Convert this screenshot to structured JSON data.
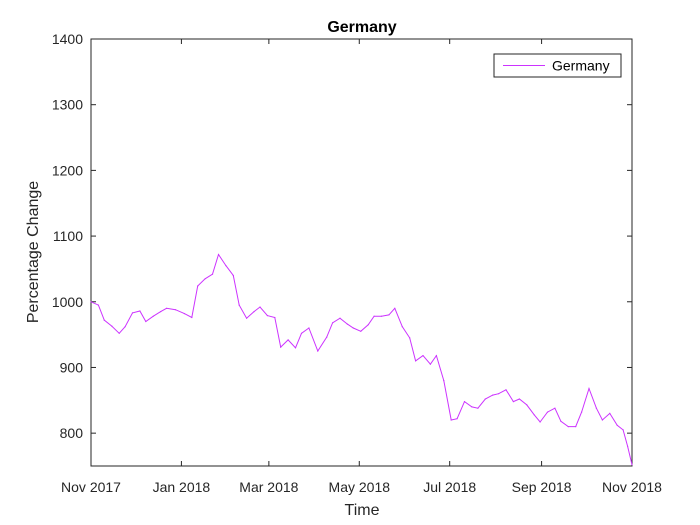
{
  "chart_data": {
    "type": "line",
    "title": "Germany",
    "xlabel": "Time",
    "ylabel": "Percentage Change",
    "xlim": [
      "2017-11-01",
      "2018-11-01"
    ],
    "ylim": [
      750,
      1400
    ],
    "x_ticks": [
      "2017-11-01",
      "2018-01-01",
      "2018-03-01",
      "2018-05-01",
      "2018-07-01",
      "2018-09-01",
      "2018-11-01"
    ],
    "x_tick_labels": [
      "Nov 2017",
      "Jan 2018",
      "Mar 2018",
      "May 2018",
      "Jul 2018",
      "Sep 2018",
      "Nov 2018"
    ],
    "y_ticks": [
      800,
      900,
      1000,
      1100,
      1200,
      1300,
      1400
    ],
    "y_tick_labels": [
      "800",
      "900",
      "1000",
      "1100",
      "1200",
      "1300",
      "1400"
    ],
    "grid": false,
    "legend": {
      "position": "top-right",
      "entries": [
        "Germany"
      ]
    },
    "series": [
      {
        "name": "Germany",
        "color": "#cc33ff",
        "x": [
          "2017-11-01",
          "2017-11-06",
          "2017-11-10",
          "2017-11-15",
          "2017-11-20",
          "2017-11-24",
          "2017-11-29",
          "2017-12-04",
          "2017-12-08",
          "2017-12-13",
          "2017-12-18",
          "2017-12-22",
          "2017-12-28",
          "2018-01-03",
          "2018-01-08",
          "2018-01-12",
          "2018-01-17",
          "2018-01-22",
          "2018-01-26",
          "2018-01-31",
          "2018-02-05",
          "2018-02-09",
          "2018-02-14",
          "2018-02-19",
          "2018-02-23",
          "2018-02-28",
          "2018-03-05",
          "2018-03-09",
          "2018-03-14",
          "2018-03-19",
          "2018-03-23",
          "2018-03-28",
          "2018-04-03",
          "2018-04-09",
          "2018-04-13",
          "2018-04-18",
          "2018-04-23",
          "2018-04-27",
          "2018-05-02",
          "2018-05-07",
          "2018-05-11",
          "2018-05-16",
          "2018-05-21",
          "2018-05-25",
          "2018-05-30",
          "2018-06-04",
          "2018-06-08",
          "2018-06-13",
          "2018-06-18",
          "2018-06-22",
          "2018-06-27",
          "2018-07-02",
          "2018-07-06",
          "2018-07-11",
          "2018-07-16",
          "2018-07-20",
          "2018-07-25",
          "2018-07-30",
          "2018-08-03",
          "2018-08-08",
          "2018-08-13",
          "2018-08-17",
          "2018-08-22",
          "2018-08-27",
          "2018-08-31",
          "2018-09-05",
          "2018-09-10",
          "2018-09-14",
          "2018-09-19",
          "2018-09-24",
          "2018-09-28",
          "2018-10-03",
          "2018-10-08",
          "2018-10-12",
          "2018-10-17",
          "2018-10-22",
          "2018-10-26",
          "2018-10-29",
          "2018-11-01"
        ],
        "values": [
          1000,
          995,
          972,
          963,
          952,
          962,
          983,
          986,
          970,
          978,
          985,
          990,
          988,
          982,
          976,
          1024,
          1035,
          1042,
          1072,
          1055,
          1040,
          995,
          975,
          985,
          992,
          979,
          976,
          931,
          942,
          930,
          952,
          960,
          925,
          946,
          968,
          975,
          966,
          960,
          955,
          965,
          978,
          978,
          980,
          990,
          962,
          945,
          910,
          918,
          905,
          918,
          880,
          820,
          822,
          848,
          840,
          838,
          852,
          858,
          860,
          866,
          848,
          852,
          843,
          828,
          817,
          832,
          838,
          818,
          810,
          810,
          832,
          868,
          838,
          820,
          830,
          812,
          805,
          780,
          752
        ]
      }
    ]
  }
}
